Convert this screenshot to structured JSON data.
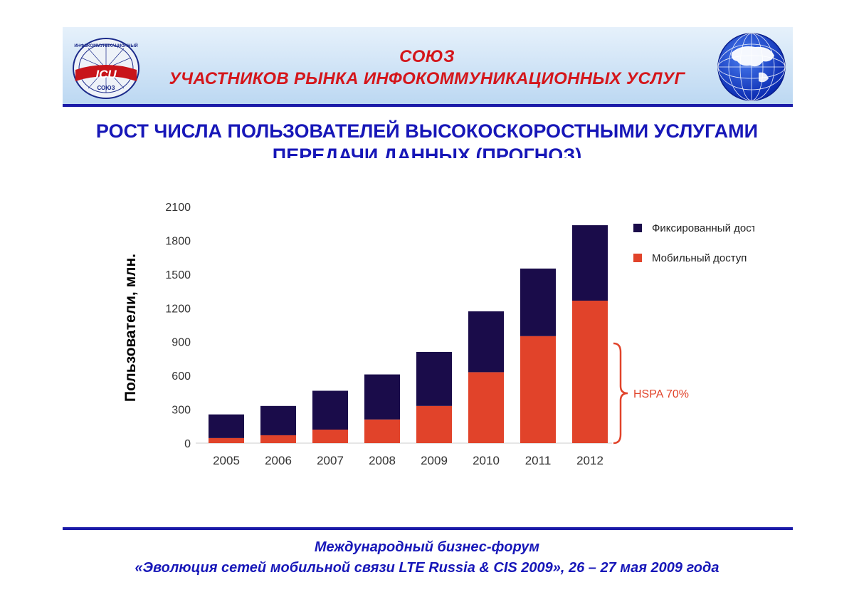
{
  "header": {
    "org_line1": "СОЮЗ",
    "org_line2": "УЧАСТНИКОВ РЫНКА ИНФОКОММУНИКАЦИОННЫХ УСЛУГ",
    "logo_text": "ICU",
    "logo_subtext": "СОЮЗ",
    "logo_ring_text": "ИНФОКОММУНИКАЦИОННЫЙ",
    "colors": {
      "accent_red": "#d4161b",
      "accent_blue": "#1717b8"
    }
  },
  "slide": {
    "title_line1": "РОСТ ЧИСЛА ПОЛЬЗОВАТЕЛЕЙ ВЫСОКОСКОРОСТНЫМИ УСЛУГАМИ",
    "title_line2": "ПЕРЕДАЧИ ДАННЫХ (ПРОГНОЗ)"
  },
  "chart_data": {
    "type": "bar",
    "stacked": true,
    "categories": [
      "2005",
      "2006",
      "2007",
      "2008",
      "2009",
      "2010",
      "2011",
      "2012"
    ],
    "series": [
      {
        "name": "Мобильный доступ",
        "color": "#e1432a",
        "values": [
          45,
          70,
          120,
          210,
          330,
          630,
          950,
          1265
        ]
      },
      {
        "name": "Фиксированный доступ",
        "color": "#1a0c4a",
        "values": [
          210,
          260,
          345,
          400,
          480,
          540,
          600,
          670
        ]
      }
    ],
    "ylabel": "Пользователи, млн.",
    "ylim": [
      0,
      2100
    ],
    "yticks": [
      "0",
      "300",
      "600",
      "900",
      "1200",
      "1500",
      "1800",
      "2100"
    ],
    "legend_position": "top-right",
    "grid": false,
    "annotation": {
      "text": "HSPA 70%",
      "color": "#e1432a",
      "spans_category": "2012"
    }
  },
  "footer": {
    "line1": "Международный бизнес-форум",
    "line2": "«Эволюция сетей мобильной связи LTE Russia & CIS 2009», 26 – 27 мая 2009 года"
  }
}
